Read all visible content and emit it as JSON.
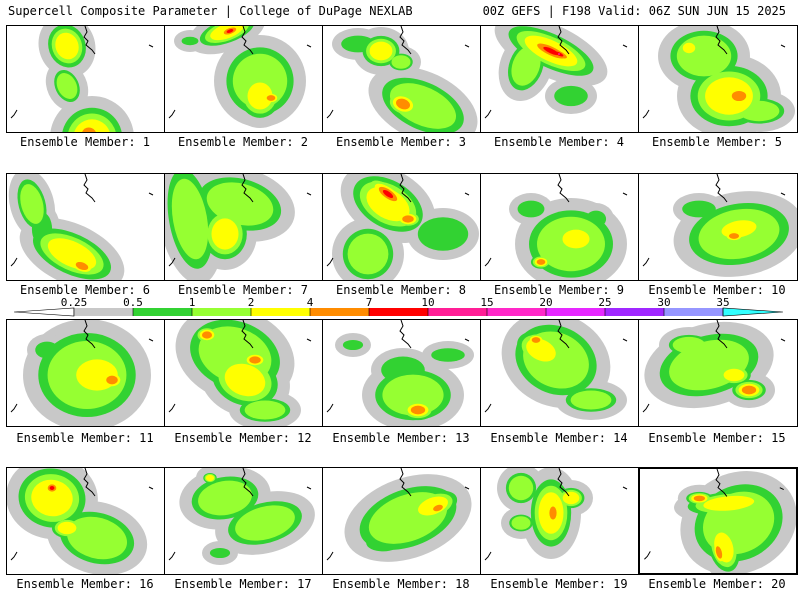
{
  "header": {
    "title": "Supercell Composite Parameter | College of DuPage NEXLAB",
    "run": "00Z GEFS | F198 Valid: 06Z SUN JUN 15 2025"
  },
  "legend": {
    "ticks": [
      "0.25",
      "0.5",
      "1",
      "2",
      "4",
      "7",
      "10",
      "15",
      "20",
      "25",
      "30",
      "35"
    ],
    "colors": [
      "#c8c8c8",
      "#32d232",
      "#96ff32",
      "#ffff00",
      "#ff8c00",
      "#ff0000",
      "#ff1e96",
      "#ff28c8",
      "#e628ff",
      "#a028ff",
      "#9696ff",
      "#32ffff"
    ]
  },
  "members": [
    {
      "label": "Ensemble Member: 1",
      "selected": false
    },
    {
      "label": "Ensemble Member: 2",
      "selected": false
    },
    {
      "label": "Ensemble Member: 3",
      "selected": false
    },
    {
      "label": "Ensemble Member: 4",
      "selected": false
    },
    {
      "label": "Ensemble Member: 5",
      "selected": false
    },
    {
      "label": "Ensemble Member: 6",
      "selected": false
    },
    {
      "label": "Ensemble Member: 7",
      "selected": false
    },
    {
      "label": "Ensemble Member: 8",
      "selected": false
    },
    {
      "label": "Ensemble Member: 9",
      "selected": false
    },
    {
      "label": "Ensemble Member: 10",
      "selected": false
    },
    {
      "label": "Ensemble Member: 11",
      "selected": false
    },
    {
      "label": "Ensemble Member: 12",
      "selected": false
    },
    {
      "label": "Ensemble Member: 13",
      "selected": false
    },
    {
      "label": "Ensemble Member: 14",
      "selected": false
    },
    {
      "label": "Ensemble Member: 15",
      "selected": false
    },
    {
      "label": "Ensemble Member: 16",
      "selected": false
    },
    {
      "label": "Ensemble Member: 17",
      "selected": false
    },
    {
      "label": "Ensemble Member: 18",
      "selected": false
    },
    {
      "label": "Ensemble Member: 19",
      "selected": false
    },
    {
      "label": "Ensemble Member: 20",
      "selected": true
    }
  ]
}
